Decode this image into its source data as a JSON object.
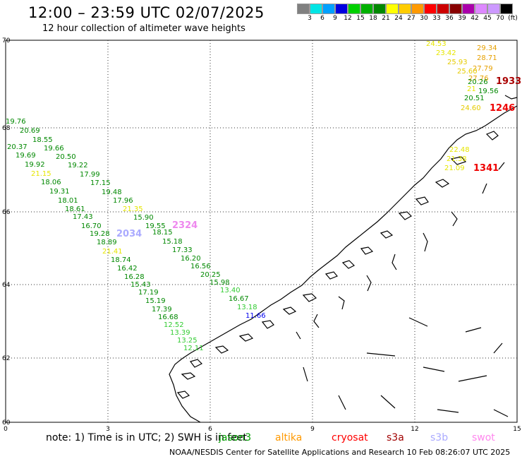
{
  "header": {
    "title": "12:00 – 23:59 UTC 02/07/2025",
    "subtitle": "12 hour collection of altimeter wave heights"
  },
  "colorbar": {
    "colors": [
      "#808080",
      "#00e5e5",
      "#00a0ff",
      "#0000e0",
      "#00d000",
      "#00b000",
      "#008800",
      "#ffff00",
      "#ffcc00",
      "#ff9900",
      "#ff0000",
      "#cc0000",
      "#880000",
      "#aa00aa",
      "#dd88ff",
      "#cc99ff",
      "#000000"
    ],
    "labels": [
      "3",
      "6",
      "9",
      "12",
      "15",
      "18",
      "21",
      "24",
      "27",
      "30",
      "33",
      "36",
      "39",
      "42",
      "45",
      "70",
      "(ft)"
    ]
  },
  "axes": {
    "x_ticks": [
      "0",
      "3",
      "6",
      "9",
      "12",
      "15"
    ],
    "y_ticks": [
      "70",
      "68",
      "66",
      "64",
      "62",
      "60"
    ]
  },
  "note": "note:  1) Time is in UTC;  2) SWH is in feet",
  "legend": [
    {
      "name": "jason3",
      "color": "#00a000"
    },
    {
      "name": "altika",
      "color": "#ff9900"
    },
    {
      "name": "cryosat",
      "color": "#ff0000"
    },
    {
      "name": "s3a",
      "color": "#a00000"
    },
    {
      "name": "s3b",
      "color": "#aaaaff"
    },
    {
      "name": "swot",
      "color": "#ff88ee"
    }
  ],
  "footer": "NOAA/NESDIS Center for Satellite Applications and Research    10 Feb 08:26:07 UTC 2025",
  "wave_heights": [
    {
      "v": "19.76",
      "c": "#008800"
    },
    {
      "v": "20.69",
      "c": "#008800"
    },
    {
      "v": "18.55",
      "c": "#008800"
    },
    {
      "v": "20.37",
      "c": "#008800"
    },
    {
      "v": "19.66",
      "c": "#008800"
    },
    {
      "v": "19.69",
      "c": "#008800"
    },
    {
      "v": "20.50",
      "c": "#008800"
    },
    {
      "v": "19.92",
      "c": "#008800"
    },
    {
      "v": "19.22",
      "c": "#008800"
    },
    {
      "v": "21.15",
      "c": "#e6e600"
    },
    {
      "v": "17.99",
      "c": "#008800"
    },
    {
      "v": "18.06",
      "c": "#008800"
    },
    {
      "v": "17.15",
      "c": "#008800"
    },
    {
      "v": "19.31",
      "c": "#008800"
    },
    {
      "v": "19.48",
      "c": "#008800"
    },
    {
      "v": "18.01",
      "c": "#008800"
    },
    {
      "v": "17.96",
      "c": "#008800"
    },
    {
      "v": "18.61",
      "c": "#008800"
    },
    {
      "v": "21.35",
      "c": "#e6e600"
    },
    {
      "v": "17.43",
      "c": "#008800"
    },
    {
      "v": "15.90",
      "c": "#008800"
    },
    {
      "v": "16.70",
      "c": "#008800"
    },
    {
      "v": "19.55",
      "c": "#008800"
    },
    {
      "v": "2324",
      "c": "#ee88ee"
    },
    {
      "v": "19.28",
      "c": "#008800"
    },
    {
      "v": "2034",
      "c": "#aaaaff"
    },
    {
      "v": "18.15",
      "c": "#008800"
    },
    {
      "v": "18.89",
      "c": "#008800"
    },
    {
      "v": "15.18",
      "c": "#008800"
    },
    {
      "v": "21.41",
      "c": "#e6e600"
    },
    {
      "v": "17.33",
      "c": "#008800"
    },
    {
      "v": "18.74",
      "c": "#008800"
    },
    {
      "v": "16.20",
      "c": "#008800"
    },
    {
      "v": "16.42",
      "c": "#008800"
    },
    {
      "v": "16.56",
      "c": "#008800"
    },
    {
      "v": "16.28",
      "c": "#008800"
    },
    {
      "v": "20.25",
      "c": "#008800"
    },
    {
      "v": "15.43",
      "c": "#008800"
    },
    {
      "v": "15.98",
      "c": "#008800"
    },
    {
      "v": "17.19",
      "c": "#008800"
    },
    {
      "v": "13.40",
      "c": "#33cc33"
    },
    {
      "v": "15.19",
      "c": "#008800"
    },
    {
      "v": "16.67",
      "c": "#008800"
    },
    {
      "v": "17.39",
      "c": "#008800"
    },
    {
      "v": "13.18",
      "c": "#33cc33"
    },
    {
      "v": "16.68",
      "c": "#008800"
    },
    {
      "v": "11.66",
      "c": "#0000ee"
    },
    {
      "v": "12.52",
      "c": "#33cc33"
    },
    {
      "v": "13.39",
      "c": "#33cc33"
    },
    {
      "v": "13.25",
      "c": "#33cc33"
    },
    {
      "v": "12.11",
      "c": "#33cc33"
    },
    {
      "v": "24.53",
      "c": "#e6e600"
    },
    {
      "v": "29.34",
      "c": "#e6a000"
    },
    {
      "v": "23.42",
      "c": "#e6e600"
    },
    {
      "v": "28.71",
      "c": "#e6a000"
    },
    {
      "v": "25.93",
      "c": "#e6cc00"
    },
    {
      "v": "27.79",
      "c": "#e6a000"
    },
    {
      "v": "25.60",
      "c": "#e6cc00"
    },
    {
      "v": "27.76",
      "c": "#e6a000"
    },
    {
      "v": "20.26",
      "c": "#008800"
    },
    {
      "v": "1933",
      "c": "#aa0000"
    },
    {
      "v": "21",
      "c": "#e6e600"
    },
    {
      "v": "19.56",
      "c": "#008800"
    },
    {
      "v": "20.51",
      "c": "#008800"
    },
    {
      "v": "24.60",
      "c": "#e6cc00"
    },
    {
      "v": "1246",
      "c": "#ee0000"
    },
    {
      "v": "22.48",
      "c": "#e6e600"
    },
    {
      "v": "21.38",
      "c": "#e6e600"
    },
    {
      "v": "21.09",
      "c": "#e6e600"
    },
    {
      "v": "1341",
      "c": "#ee0000"
    }
  ]
}
